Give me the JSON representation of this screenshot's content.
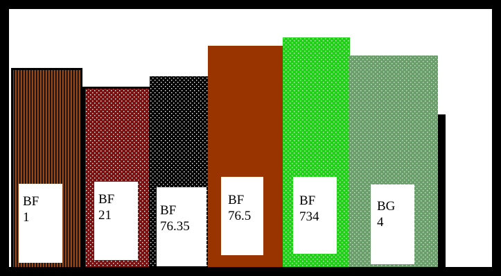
{
  "books": [
    {
      "line1": "BF",
      "line2": "1"
    },
    {
      "line1": "BF",
      "line2": "21"
    },
    {
      "line1": "BF",
      "line2": "76.35"
    },
    {
      "line1": "BF",
      "line2": "76.5"
    },
    {
      "line1": "BF",
      "line2": "734"
    },
    {
      "line1": "BG",
      "line2": "4"
    }
  ]
}
